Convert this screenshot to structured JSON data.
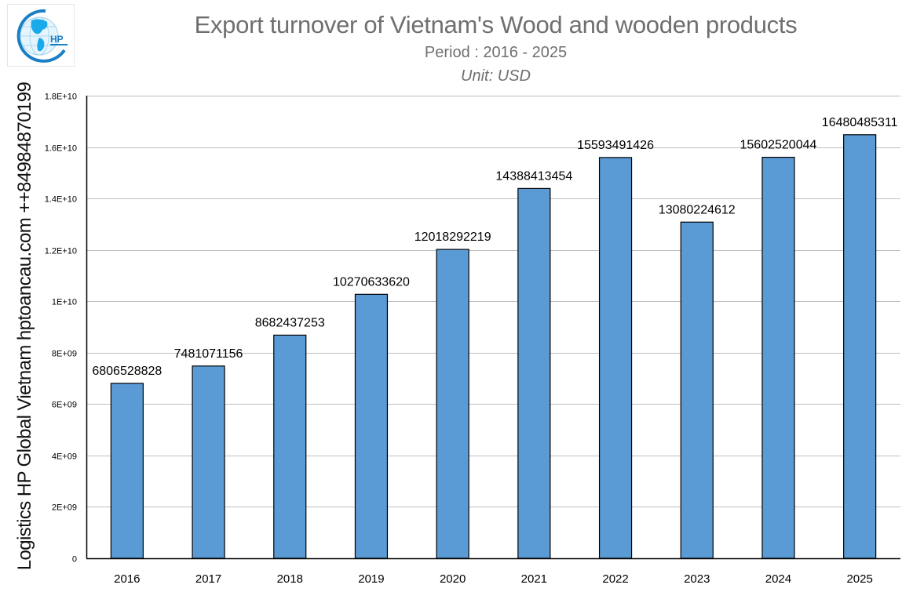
{
  "header": {
    "title": "Export turnover of Vietnam's Wood and wooden products",
    "subtitle": "Period : 2016 - 2025",
    "unit": "Unit: USD"
  },
  "logo": {
    "text": "HP",
    "icon": "globe-logo-icon"
  },
  "watermark": "Logistics HP Global Vietnam hptoancau.com ++84984870199",
  "colors": {
    "bar": "#5b9bd5",
    "bar_border": "#000000",
    "grid": "#bfbfbf",
    "title": "#6f6f6f"
  },
  "chart_data": {
    "type": "bar",
    "title": "Export turnover of Vietnam's Wood and wooden products",
    "subtitle": "Period : 2016 - 2025",
    "unit": "Unit: USD",
    "xlabel": "",
    "ylabel": "",
    "categories": [
      "2016",
      "2017",
      "2018",
      "2019",
      "2020",
      "2021",
      "2022",
      "2023",
      "2024",
      "2025"
    ],
    "values": [
      6806528828,
      7481071156,
      8682437253,
      10270633620,
      12018292219,
      14388413454,
      15593491426,
      13080224612,
      15602520044,
      16480485311
    ],
    "data_labels": [
      "6806528828",
      "7481071156",
      "8682437253",
      "10270633620",
      "12018292219",
      "14388413454",
      "15593491426",
      "13080224612",
      "15602520044",
      "16480485311"
    ],
    "ylim": [
      0,
      18000000000
    ],
    "yticks": [
      0,
      2000000000,
      4000000000,
      6000000000,
      8000000000,
      10000000000,
      12000000000,
      14000000000,
      16000000000,
      18000000000
    ],
    "ytick_labels": [
      "0",
      "2E+09",
      "4E+09",
      "6E+09",
      "8E+09",
      "1E+10",
      "1.2E+10",
      "1.4E+10",
      "1.6E+10",
      "1.8E+10"
    ],
    "grid": true,
    "legend": null
  }
}
